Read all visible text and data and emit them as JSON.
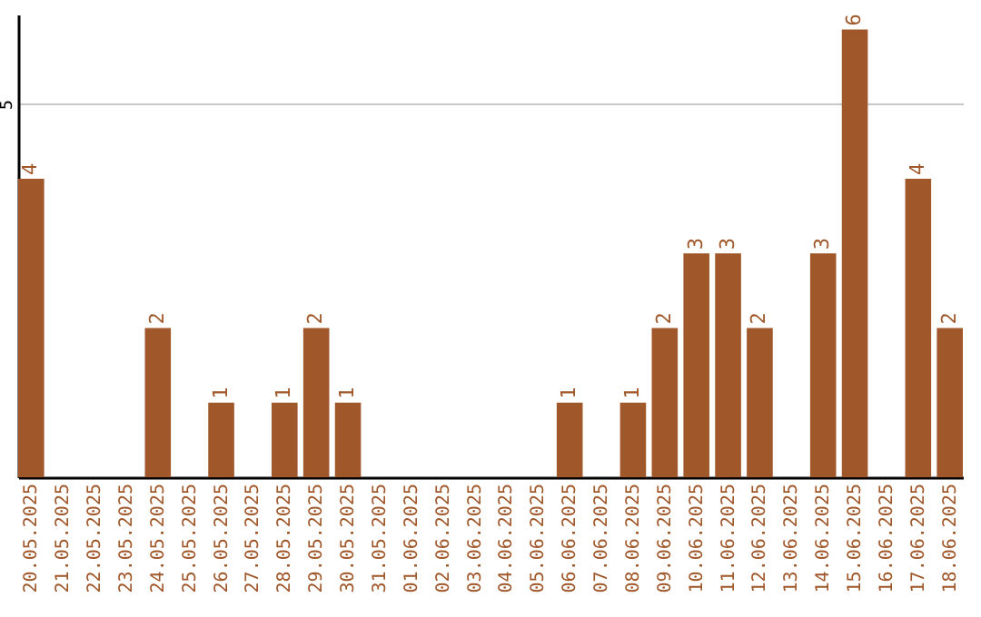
{
  "chart_data": {
    "type": "bar",
    "categories": [
      "20.05.2025",
      "21.05.2025",
      "22.05.2025",
      "23.05.2025",
      "24.05.2025",
      "25.05.2025",
      "26.05.2025",
      "27.05.2025",
      "28.05.2025",
      "29.05.2025",
      "30.05.2025",
      "31.05.2025",
      "01.06.2025",
      "02.06.2025",
      "03.06.2025",
      "04.06.2025",
      "05.06.2025",
      "06.06.2025",
      "07.06.2025",
      "08.06.2025",
      "09.06.2025",
      "10.06.2025",
      "11.06.2025",
      "12.06.2025",
      "13.06.2025",
      "14.06.2025",
      "15.06.2025",
      "16.06.2025",
      "17.06.2025",
      "18.06.2025"
    ],
    "values": [
      4,
      0,
      0,
      0,
      2,
      0,
      1,
      0,
      1,
      2,
      1,
      0,
      0,
      0,
      0,
      0,
      0,
      1,
      0,
      1,
      2,
      3,
      3,
      2,
      0,
      3,
      6,
      0,
      4,
      2
    ],
    "value_labels": [
      "4",
      null,
      null,
      null,
      "2",
      null,
      "1",
      null,
      "1",
      "2",
      "1",
      null,
      null,
      null,
      null,
      null,
      null,
      "1",
      null,
      "1",
      "2",
      "3",
      "3",
      "2",
      null,
      "3",
      "6",
      null,
      "4",
      "2"
    ],
    "color": "#a0572a",
    "ylim": [
      0,
      6.2
    ],
    "yticks": [
      5
    ],
    "grid": "y"
  }
}
